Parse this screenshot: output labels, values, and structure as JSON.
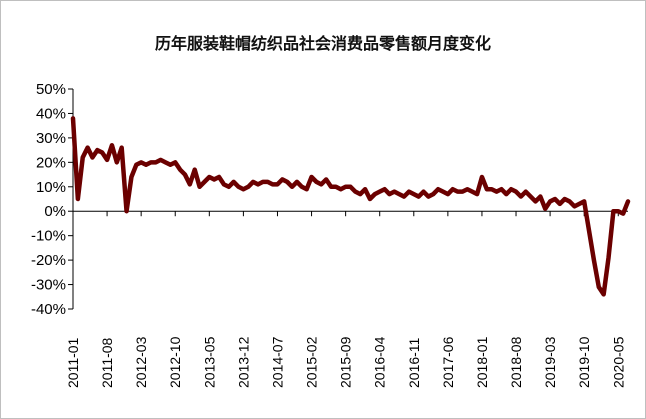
{
  "chart_data": {
    "type": "line",
    "title": "历年服装鞋帽纺织品社会消费品零售额月度变化",
    "xlabel": "",
    "ylabel": "",
    "ylim": [
      -40,
      50
    ],
    "y_ticks": [
      "50%",
      "40%",
      "30%",
      "20%",
      "10%",
      "0%",
      "-10%",
      "-20%",
      "-30%",
      "-40%"
    ],
    "x_tick_labels": [
      "2011-01",
      "2011-08",
      "2012-03",
      "2012-10",
      "2013-05",
      "2013-12",
      "2014-07",
      "2015-02",
      "2015-09",
      "2016-04",
      "2016-11",
      "2017-06",
      "2018-01",
      "2018-08",
      "2019-03",
      "2019-10",
      "2020-05"
    ],
    "grid": false,
    "legend": "none",
    "line_color": "#6b0000",
    "start": "2011-01",
    "end": "2020-07",
    "values": [
      38,
      5,
      22,
      26,
      22,
      25,
      24,
      21,
      27,
      20,
      26,
      0,
      14,
      19,
      20,
      19,
      20,
      20,
      21,
      20,
      19,
      20,
      17,
      15,
      11,
      17,
      10,
      12,
      14,
      13,
      14,
      11,
      10,
      12,
      10,
      9,
      10,
      12,
      11,
      12,
      12,
      11,
      11,
      13,
      12,
      10,
      12,
      10,
      9,
      14,
      12,
      11,
      13,
      10,
      10,
      9,
      10,
      10,
      8,
      7,
      9,
      5,
      7,
      8,
      9,
      7,
      8,
      7,
      6,
      8,
      7,
      6,
      8,
      6,
      7,
      9,
      8,
      7,
      9,
      8,
      8,
      9,
      8,
      7,
      14,
      9,
      9,
      8,
      9,
      7,
      9,
      8,
      6,
      8,
      6,
      4,
      6,
      1,
      4,
      5,
      3,
      5,
      4,
      2,
      3,
      4,
      -8,
      -20,
      -31,
      -34,
      -19,
      0,
      0,
      -1,
      4
    ]
  }
}
